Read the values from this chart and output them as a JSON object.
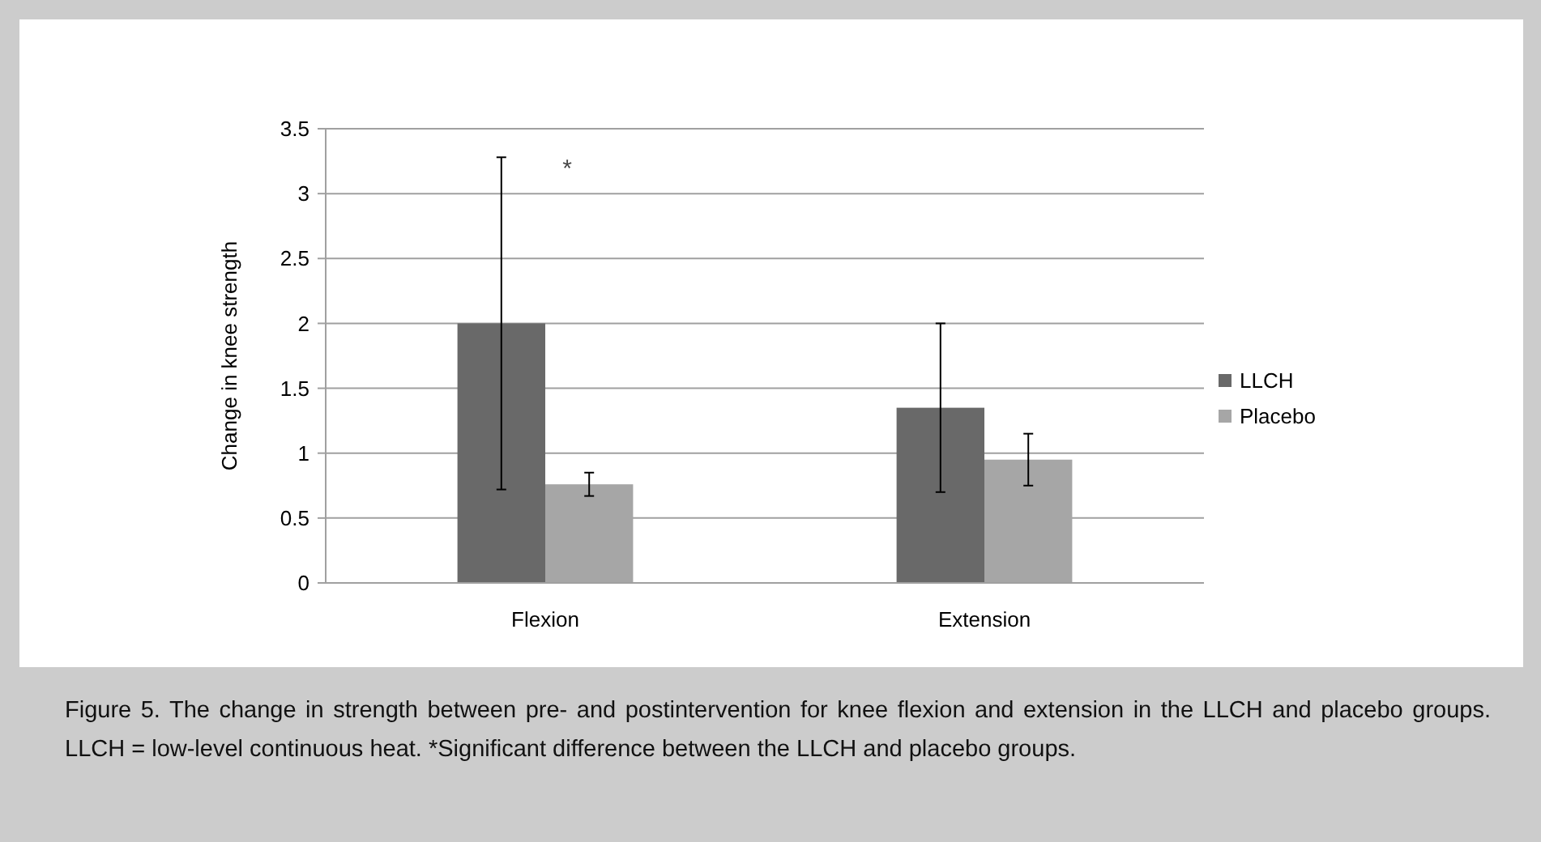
{
  "chart_data": {
    "type": "bar",
    "ylabel": "Change in knee strength",
    "categories": [
      "Flexion",
      "Extension"
    ],
    "series": [
      {
        "name": "LLCH",
        "color": "#696969",
        "values": [
          2.0,
          1.35
        ],
        "errors": [
          1.28,
          0.65
        ]
      },
      {
        "name": "Placebo",
        "color": "#a6a6a6",
        "values": [
          0.76,
          0.95
        ],
        "errors": [
          0.09,
          0.2
        ]
      }
    ],
    "ylim": [
      0,
      3.5
    ],
    "yticks": [
      0,
      0.5,
      1,
      1.5,
      2,
      2.5,
      3,
      3.5
    ],
    "grid": "y",
    "legend": "right",
    "annotations": [
      "*",
      "Figure 5. The change in strength between pre- and postintervention for knee flexion and extension in the LLCH and placebo groups. LLCH = low-level continuous heat. *Significant difference between the LLCH and placebo groups."
    ]
  }
}
